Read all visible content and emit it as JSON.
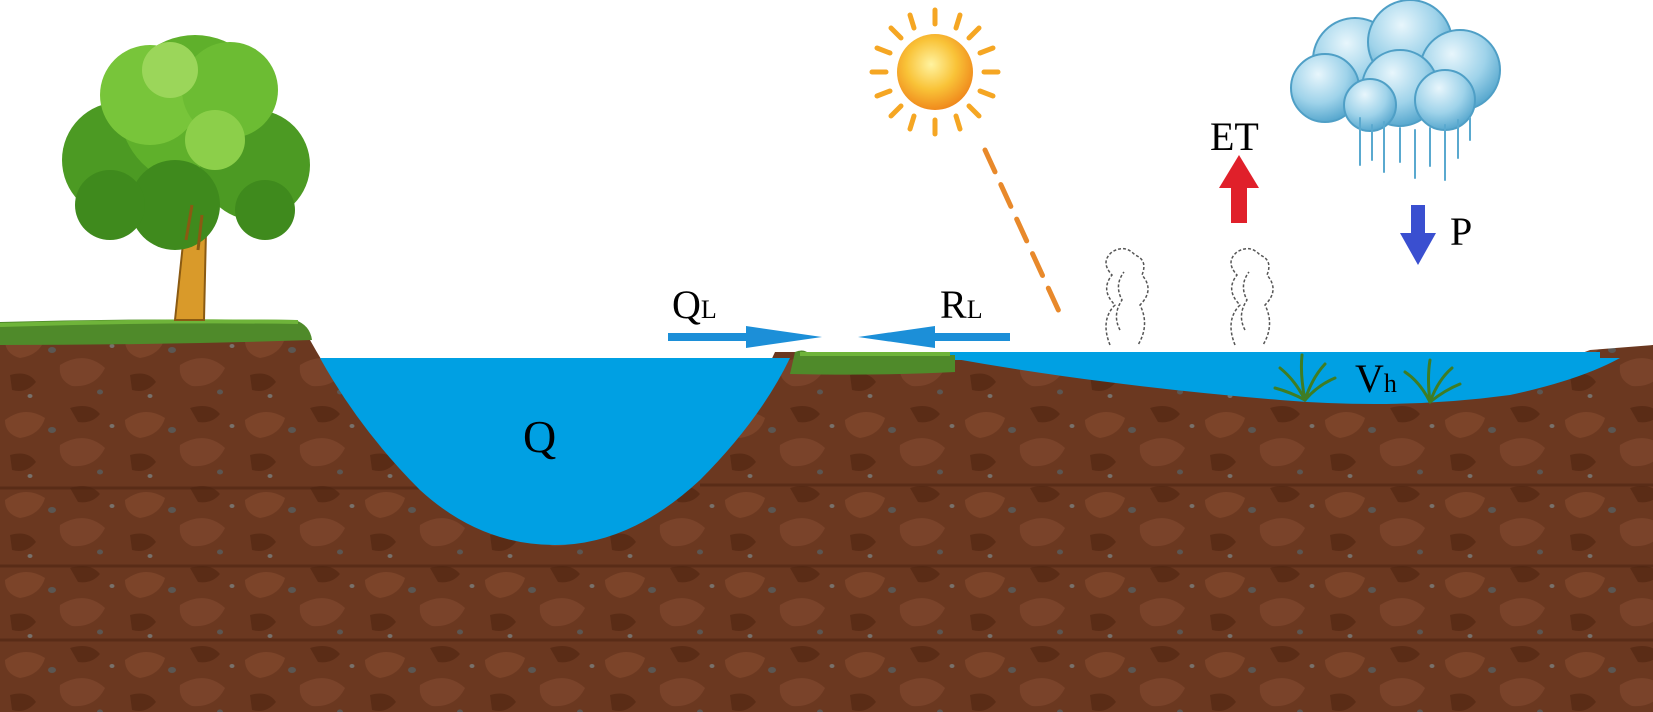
{
  "labels": {
    "channel_flow": "Q",
    "lateral_inflow": {
      "main": "Q",
      "sub": "L"
    },
    "lateral_return": {
      "main": "R",
      "sub": "L"
    },
    "evapotranspiration": "ET",
    "precipitation": "P",
    "wetland_volume": {
      "main": "V",
      "sub": "h"
    }
  },
  "icons": [
    "tree-icon",
    "sun-icon",
    "cloud-icon",
    "rain-icon",
    "vapor-icon",
    "grass-icon"
  ],
  "colors": {
    "water": "#00a0e3",
    "soil": "#6e3a22",
    "soil_dark": "#4e2512",
    "grass": "#4f8a2a",
    "lateral_arrows": "#1c8fd8",
    "et_arrow": "#e0202a",
    "precip_arrow": "#3a4fd0",
    "sun": "#f5a623",
    "sun_ray": "#e8892b"
  }
}
